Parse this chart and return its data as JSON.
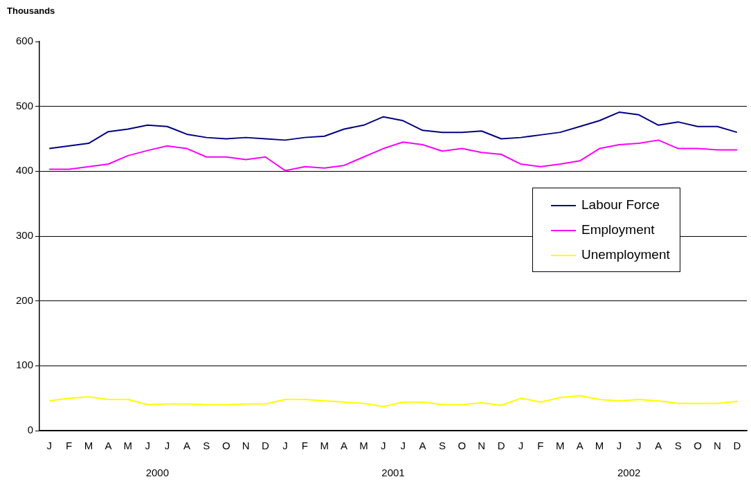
{
  "chart_data": {
    "type": "line",
    "ylabel": "Thousands",
    "categories": [
      "J",
      "F",
      "M",
      "A",
      "M",
      "J",
      "J",
      "A",
      "S",
      "O",
      "N",
      "D",
      "J",
      "F",
      "M",
      "A",
      "M",
      "J",
      "J",
      "A",
      "S",
      "O",
      "N",
      "D",
      "J",
      "F",
      "M",
      "A",
      "M",
      "J",
      "J",
      "A",
      "S",
      "O",
      "N",
      "D"
    ],
    "annotations": [
      "2000",
      "2001",
      "2002"
    ],
    "series": [
      {
        "name": "Labour Force",
        "color": "#000080",
        "values": [
          435,
          439,
          443,
          461,
          465,
          471,
          469,
          457,
          452,
          450,
          452,
          450,
          448,
          452,
          454,
          465,
          471,
          484,
          478,
          463,
          460,
          460,
          462,
          450,
          452,
          456,
          460,
          469,
          478,
          491,
          487,
          471,
          476,
          469,
          469,
          460
        ]
      },
      {
        "name": "Employment",
        "color": "#ff00ff",
        "values": [
          403,
          403,
          407,
          411,
          424,
          432,
          439,
          435,
          422,
          422,
          418,
          422,
          401,
          407,
          405,
          409,
          422,
          435,
          445,
          441,
          431,
          435,
          429,
          426,
          411,
          407,
          411,
          416,
          435,
          441,
          443,
          448,
          435,
          435,
          433,
          433
        ]
      },
      {
        "name": "Unemployment",
        "color": "#ffff00",
        "values": [
          46,
          50,
          52,
          48,
          48,
          40,
          41,
          41,
          40,
          40,
          41,
          41,
          48,
          48,
          46,
          44,
          42,
          37,
          44,
          44,
          40,
          40,
          43,
          39,
          50,
          44,
          51,
          54,
          48,
          46,
          48,
          46,
          42,
          42,
          42,
          45
        ]
      }
    ],
    "ylim": [
      0,
      600
    ],
    "yticks": [
      0,
      100,
      200,
      300,
      400,
      500,
      600
    ],
    "grid": "y",
    "legend": "right",
    "marker": "none",
    "line_style": "solid"
  }
}
